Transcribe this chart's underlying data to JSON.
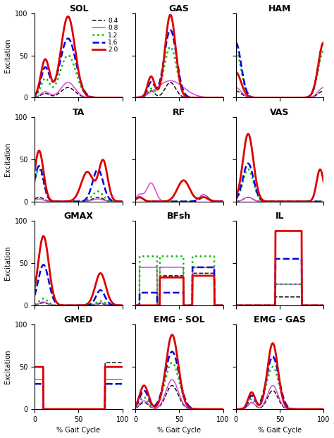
{
  "titles": [
    "SOL",
    "GAS",
    "HAM",
    "TA",
    "RF",
    "VAS",
    "GMAX",
    "BFsh",
    "IL",
    "GMED",
    "EMG - SOL",
    "EMG - GAS"
  ],
  "legend_labels": [
    "0.4",
    "0.8",
    "1.2",
    "1.6",
    "2.0"
  ],
  "line_styles": [
    {
      "color": "#111111",
      "linestyle": "--",
      "linewidth": 1.1
    },
    {
      "color": "#dd44dd",
      "linestyle": "-",
      "linewidth": 1.1
    },
    {
      "color": "#00bb00",
      "linestyle": ":",
      "linewidth": 1.8
    },
    {
      "color": "#0000dd",
      "linestyle": "--",
      "linewidth": 1.8
    },
    {
      "color": "#dd0000",
      "linestyle": "-",
      "linewidth": 2.0
    }
  ],
  "ylabel": "Excitation",
  "xlabel": "% Gait Cycle",
  "ylim": [
    0,
    100
  ],
  "xlim": [
    0,
    100
  ]
}
